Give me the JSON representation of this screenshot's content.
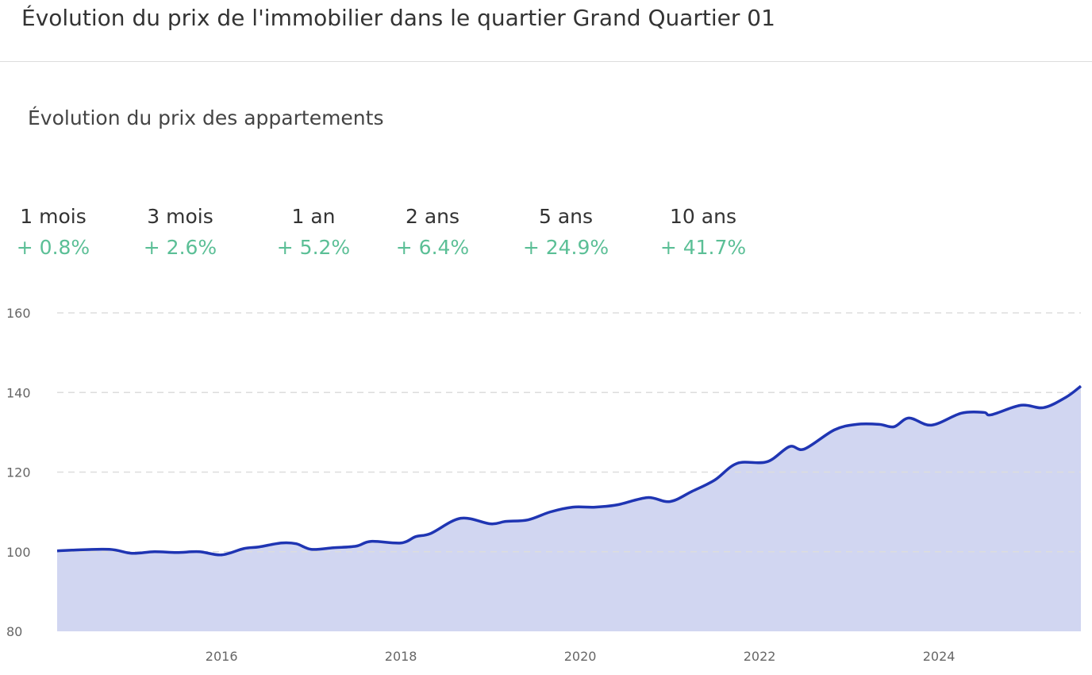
{
  "header": {
    "title": "Évolution du prix de l'immobilier dans le quartier Grand Quartier 01"
  },
  "section": {
    "subtitle": "Évolution du prix des appartements"
  },
  "periods": [
    {
      "label": "1 mois",
      "value": "+ 0.8%"
    },
    {
      "label": "3 mois",
      "value": "+ 2.6%"
    },
    {
      "label": "1 an",
      "value": "+ 5.2%"
    },
    {
      "label": "2 ans",
      "value": "+ 6.4%"
    },
    {
      "label": "5 ans",
      "value": "+ 24.9%"
    },
    {
      "label": "10 ans",
      "value": "+ 41.7%"
    }
  ],
  "colors": {
    "positive": "#5bbf96",
    "line": "#1f35b3",
    "area": "#d1d6f1",
    "grid": "#dddddd"
  },
  "chart_data": {
    "type": "area",
    "title": "",
    "xlabel": "",
    "ylabel": "",
    "ylim": [
      80,
      160
    ],
    "xlim": [
      "2014-03",
      "2025-08"
    ],
    "yticks": [
      80,
      100,
      120,
      140,
      160
    ],
    "xticks": [
      "2016",
      "2018",
      "2020",
      "2022",
      "2024"
    ],
    "grid": "horizontal dashed",
    "series": [
      {
        "x": [
          "2014-03",
          "2014-05",
          "2014-10",
          "2015-01",
          "2015-04",
          "2015-07",
          "2015-10",
          "2016-01",
          "2016-04",
          "2016-06",
          "2016-09",
          "2016-11",
          "2017-01",
          "2017-04",
          "2017-07",
          "2017-09",
          "2018-01",
          "2018-03",
          "2018-05",
          "2018-09",
          "2019-01",
          "2019-03",
          "2019-06",
          "2019-09",
          "2019-12",
          "2020-03",
          "2020-06",
          "2020-10",
          "2021-01",
          "2021-04",
          "2021-07",
          "2021-10",
          "2022-02",
          "2022-05",
          "2022-07",
          "2022-11",
          "2023-02",
          "2023-05",
          "2023-07",
          "2023-09",
          "2023-12",
          "2024-04",
          "2024-07",
          "2024-08",
          "2024-12",
          "2025-03",
          "2025-06",
          "2025-08"
        ],
        "y": [
          100.2,
          100.4,
          100.6,
          99.6,
          100.0,
          99.8,
          100.0,
          99.2,
          100.8,
          101.2,
          102.2,
          102.0,
          100.6,
          101.0,
          101.4,
          102.6,
          102.2,
          103.8,
          104.6,
          108.4,
          107.0,
          107.6,
          108.0,
          110.0,
          111.2,
          111.2,
          111.8,
          113.6,
          112.6,
          115.2,
          118.0,
          122.2,
          122.6,
          126.4,
          125.8,
          130.6,
          132.0,
          132.0,
          131.4,
          133.6,
          131.8,
          134.8,
          135.0,
          134.4,
          136.8,
          136.2,
          138.8,
          141.6
        ]
      }
    ]
  }
}
